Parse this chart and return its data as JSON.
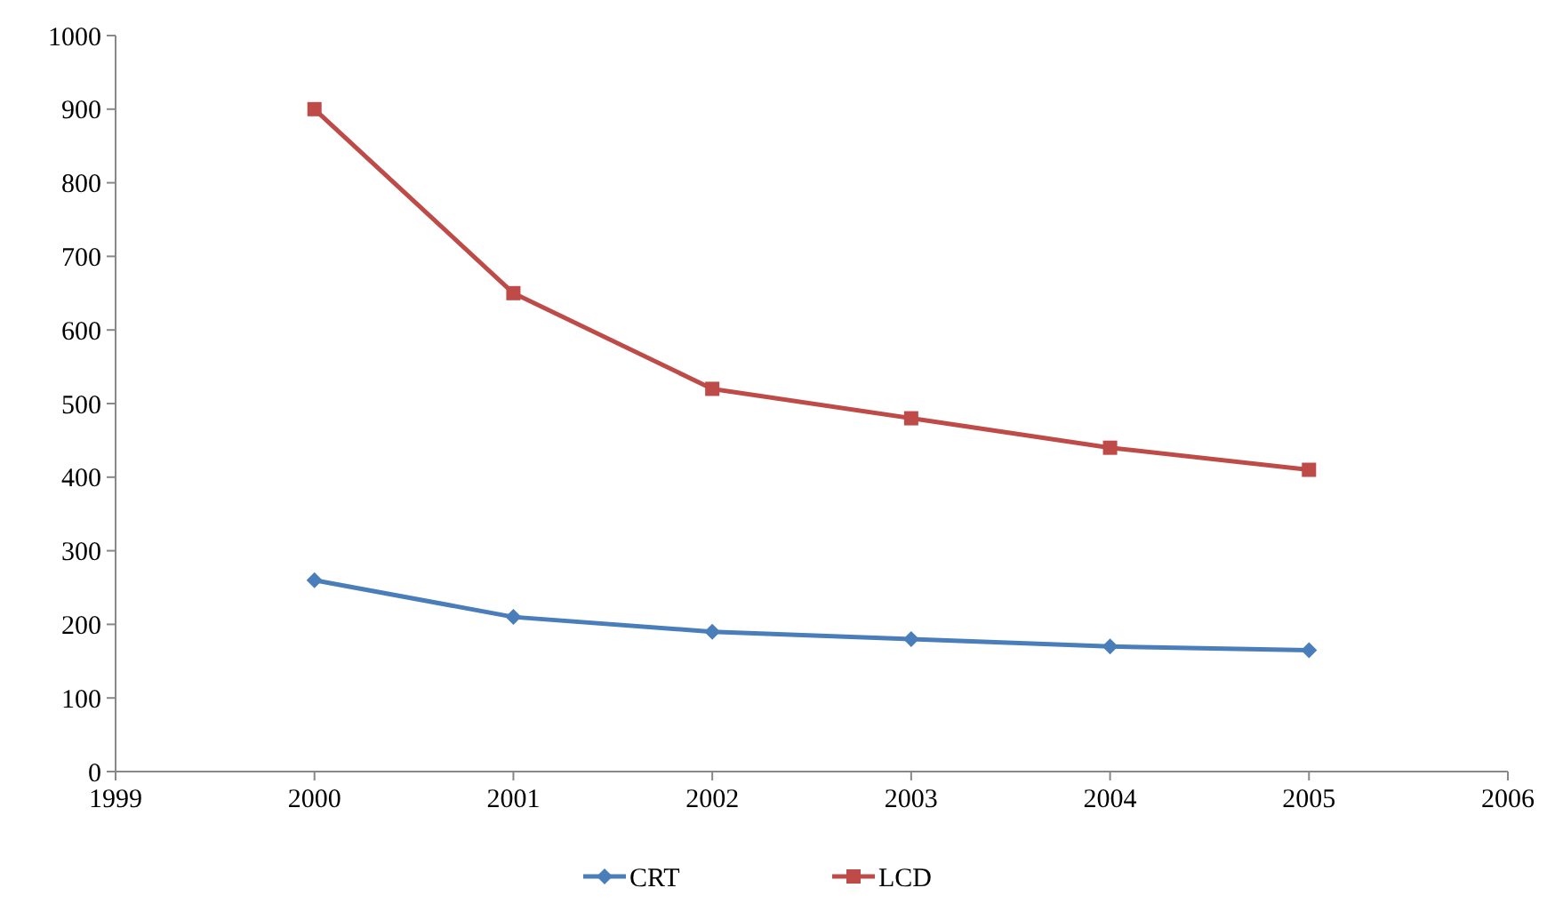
{
  "chart_data": {
    "type": "line",
    "x": [
      2000,
      2001,
      2002,
      2003,
      2004,
      2005
    ],
    "series": [
      {
        "name": "CRT",
        "color": "#4a7ebb",
        "marker": "diamond",
        "values": [
          260,
          210,
          190,
          180,
          170,
          165
        ]
      },
      {
        "name": "LCD",
        "color": "#be4b48",
        "marker": "square",
        "values": [
          900,
          650,
          520,
          480,
          440,
          410
        ]
      }
    ],
    "xlim": [
      1999,
      2006
    ],
    "xticks": [
      1999,
      2000,
      2001,
      2002,
      2003,
      2004,
      2005,
      2006
    ],
    "ylim": [
      0,
      1000
    ],
    "yticks": [
      0,
      100,
      200,
      300,
      400,
      500,
      600,
      700,
      800,
      900,
      1000
    ],
    "grid": false,
    "legend": "bottom",
    "line_style": "solid"
  }
}
